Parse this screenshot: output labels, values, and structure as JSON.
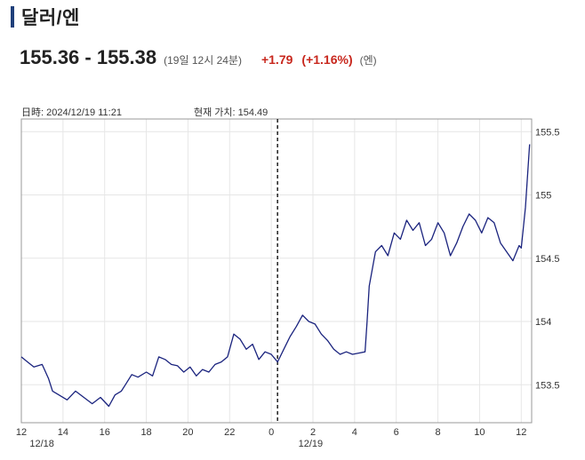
{
  "header": {
    "title": "달러/엔"
  },
  "quote": {
    "range": "155.36 - 155.38",
    "time": "(19일 12시 24분)",
    "change": "+1.79",
    "change_pct": "(+1.16%)",
    "unit": "(엔)"
  },
  "info": {
    "date_text": "日時: 2024/12/19  11:21",
    "current_text": "현재 가치: 154.49"
  },
  "colors": {
    "line": "#1a237e",
    "accent": "#1f3f7a",
    "up": "#c8281e",
    "grid": "#e6e6e6"
  },
  "chart_data": {
    "type": "line",
    "title": "",
    "xlabel": "",
    "ylabel": "",
    "ylim": [
      153.2,
      155.6
    ],
    "xlim": [
      12,
      36.5
    ],
    "x_ticks": [
      12,
      14,
      16,
      18,
      20,
      22,
      24,
      26,
      28,
      30,
      32,
      34,
      36
    ],
    "x_tick_labels": [
      "12",
      "14",
      "16",
      "18",
      "20",
      "22",
      "0",
      "2",
      "4",
      "6",
      "8",
      "10",
      "12"
    ],
    "date_labels": [
      {
        "x": 12.4,
        "label": "12/18"
      },
      {
        "x": 25.3,
        "label": "12/19"
      }
    ],
    "y_ticks": [
      153.5,
      154,
      154.5,
      155,
      155.5
    ],
    "y_tick_labels": [
      "153.5",
      "154",
      "154.5",
      "155",
      "155.5"
    ],
    "marker_x": 24.3,
    "series": [
      {
        "x": [
          12.0,
          12.3,
          12.6,
          13.0,
          13.3,
          13.5,
          13.8,
          14.2,
          14.6,
          15.0,
          15.4,
          15.8,
          16.2,
          16.5,
          16.8,
          17.0,
          17.3,
          17.6,
          18.0,
          18.3,
          18.6,
          18.9,
          19.2,
          19.5,
          19.8,
          20.1,
          20.4,
          20.7,
          21.0,
          21.3,
          21.6,
          21.9,
          22.2,
          22.5,
          22.8,
          23.1,
          23.4,
          23.7,
          24.0,
          24.3,
          24.6,
          24.9,
          25.2,
          25.5,
          25.8,
          26.1,
          26.4,
          26.7,
          27.0,
          27.3,
          27.6,
          27.9,
          28.2,
          28.5,
          28.6,
          28.7,
          29.0,
          29.3,
          29.6,
          29.9,
          30.2,
          30.5,
          30.8,
          31.1,
          31.4,
          31.7,
          32.0,
          32.3,
          32.6,
          32.9,
          33.2,
          33.5,
          33.8,
          34.1,
          34.4,
          34.7,
          35.0,
          35.3,
          35.6,
          35.9,
          36.0,
          36.2,
          36.4
        ],
        "values": [
          153.72,
          153.68,
          153.64,
          153.66,
          153.55,
          153.45,
          153.42,
          153.38,
          153.45,
          153.4,
          153.35,
          153.4,
          153.33,
          153.42,
          153.45,
          153.5,
          153.58,
          153.56,
          153.6,
          153.57,
          153.72,
          153.7,
          153.66,
          153.65,
          153.6,
          153.64,
          153.57,
          153.62,
          153.6,
          153.66,
          153.68,
          153.72,
          153.9,
          153.86,
          153.78,
          153.82,
          153.7,
          153.76,
          153.74,
          153.68,
          153.78,
          153.88,
          153.96,
          154.05,
          154.0,
          153.98,
          153.9,
          153.85,
          153.78,
          153.74,
          153.76,
          153.74,
          153.75,
          153.76,
          154.0,
          154.28,
          154.55,
          154.6,
          154.52,
          154.7,
          154.65,
          154.8,
          154.72,
          154.78,
          154.6,
          154.65,
          154.78,
          154.7,
          154.52,
          154.62,
          154.75,
          154.85,
          154.8,
          154.7,
          154.82,
          154.78,
          154.62,
          154.55,
          154.48,
          154.6,
          154.58,
          154.9,
          155.4
        ]
      }
    ]
  }
}
